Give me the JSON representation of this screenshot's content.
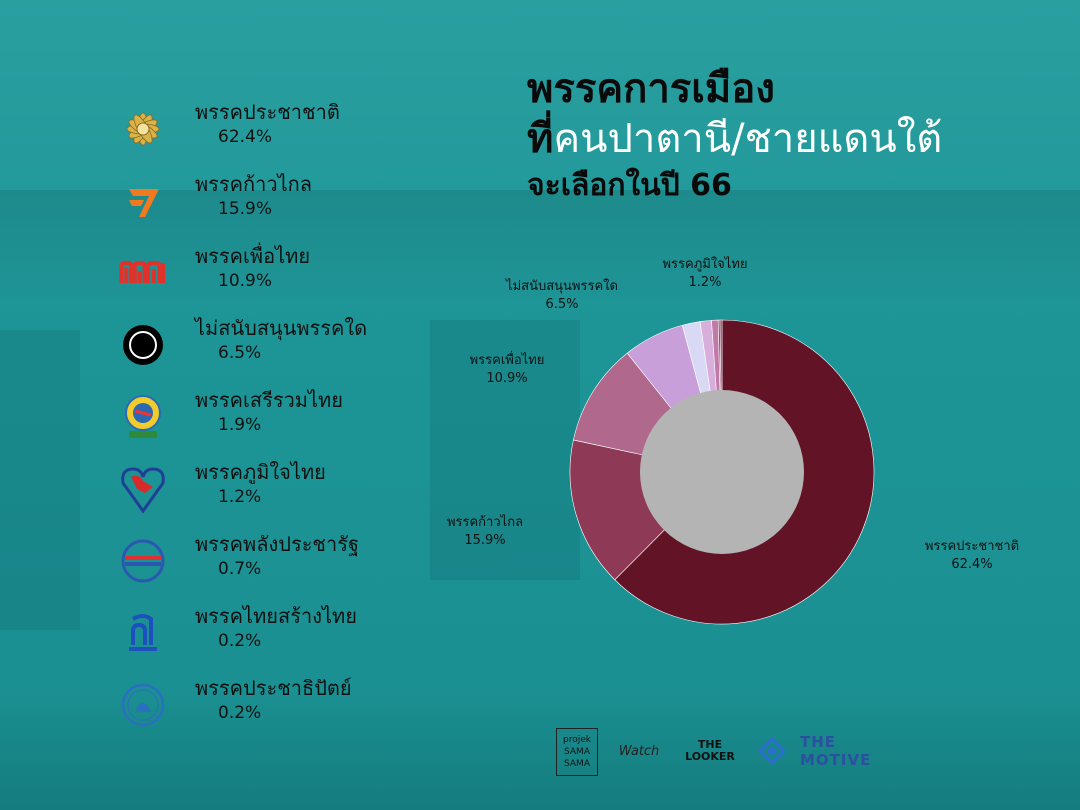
{
  "title": {
    "line1": "พรรคการเมือง",
    "line2a": "ที่",
    "line2b": "คนปาตานี/ชายแดนใต้",
    "line3": "จะเลือกในปี 66"
  },
  "legend": [
    {
      "name": "พรรคประชาชาติ",
      "pct": "62.4%"
    },
    {
      "name": "พรรคก้าวไกล",
      "pct": "15.9%"
    },
    {
      "name": "พรรคเพื่อไทย",
      "pct": "10.9%"
    },
    {
      "name": "ไม่สนับสนุนพรรคใด",
      "pct": "6.5%"
    },
    {
      "name": "พรรคเสรีรวมไทย",
      "pct": "1.9%"
    },
    {
      "name": "พรรคภูมิใจไทย",
      "pct": "1.2%"
    },
    {
      "name": "พรรคพลังประชารัฐ",
      "pct": "0.7%"
    },
    {
      "name": "พรรคไทยสร้างไทย",
      "pct": "0.2%"
    },
    {
      "name": "พรรคประชาธิปัตย์",
      "pct": "0.2%"
    }
  ],
  "chart_data": {
    "type": "pie",
    "categories": [
      "พรรคประชาชาติ",
      "พรรคก้าวไกล",
      "พรรคเพื่อไทย",
      "ไม่สนับสนุนพรรคใด",
      "พรรคเสรีรวมไทย",
      "พรรคภูมิใจไทย",
      "พรรคพลังประชารัฐ",
      "พรรคไทยสร้างไทย",
      "พรรคประชาธิปัตย์"
    ],
    "values": [
      62.4,
      15.9,
      10.9,
      6.5,
      1.9,
      1.2,
      0.7,
      0.2,
      0.2
    ],
    "colors": [
      "#621426",
      "#8e3a56",
      "#b0688d",
      "#c89fd8",
      "#d9d9f5",
      "#d8aedd",
      "#c07aa8",
      "#9e4a70",
      "#7a2a48"
    ],
    "donut": true,
    "hole_color": "#b4b4b4",
    "labels": [
      {
        "index": 0,
        "name": "พรรคประชาชาติ",
        "pct": "62.4%"
      },
      {
        "index": 1,
        "name": "พรรคก้าวไกล",
        "pct": "15.9%"
      },
      {
        "index": 2,
        "name": "พรรคเพื่อไทย",
        "pct": "10.9%"
      },
      {
        "index": 3,
        "name": "ไม่สนับสนุนพรรคใด",
        "pct": "6.5%"
      },
      {
        "index": 5,
        "name": "พรรคภูมิใจไทย",
        "pct": "1.2%"
      }
    ]
  },
  "logos": [
    "projek",
    "SAMA",
    "SAMA",
    "Watch",
    "THE",
    "LOOKER",
    "THE MOTIVE"
  ]
}
